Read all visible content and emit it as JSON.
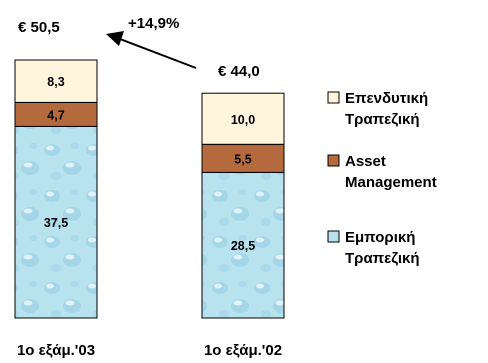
{
  "chart_data": {
    "type": "bar",
    "stacked": true,
    "categories": [
      "1ο εξάμ.'03",
      "1ο εξάμ.'02"
    ],
    "series": [
      {
        "name": "Εμπορική Τραπεζική",
        "legend_lines": [
          "Εμπορική",
          "Τραπεζική"
        ],
        "values": [
          37.5,
          28.5
        ],
        "value_labels": [
          "37,5",
          "28,5"
        ],
        "color": "#b8e2ee"
      },
      {
        "name": "Asset Management",
        "legend_lines": [
          "Asset",
          "Management"
        ],
        "values": [
          4.7,
          5.5
        ],
        "value_labels": [
          "4,7",
          "5,5"
        ],
        "color": "#b46a3c"
      },
      {
        "name": "Επενδυτική Τραπεζική",
        "legend_lines": [
          "Επενδυτική",
          "Τραπεζική"
        ],
        "values": [
          8.3,
          10.0
        ],
        "value_labels": [
          "8,3",
          "10,0"
        ],
        "color": "#fff5dc"
      }
    ],
    "totals": [
      "€ 50,5",
      "€ 44,0"
    ],
    "annotation": "+14,9%",
    "legend_order": [
      2,
      1,
      0
    ],
    "legend_position": "right",
    "title": "",
    "xlabel": "",
    "ylabel": "",
    "ylim": [
      0,
      50.5
    ],
    "grid": false
  }
}
